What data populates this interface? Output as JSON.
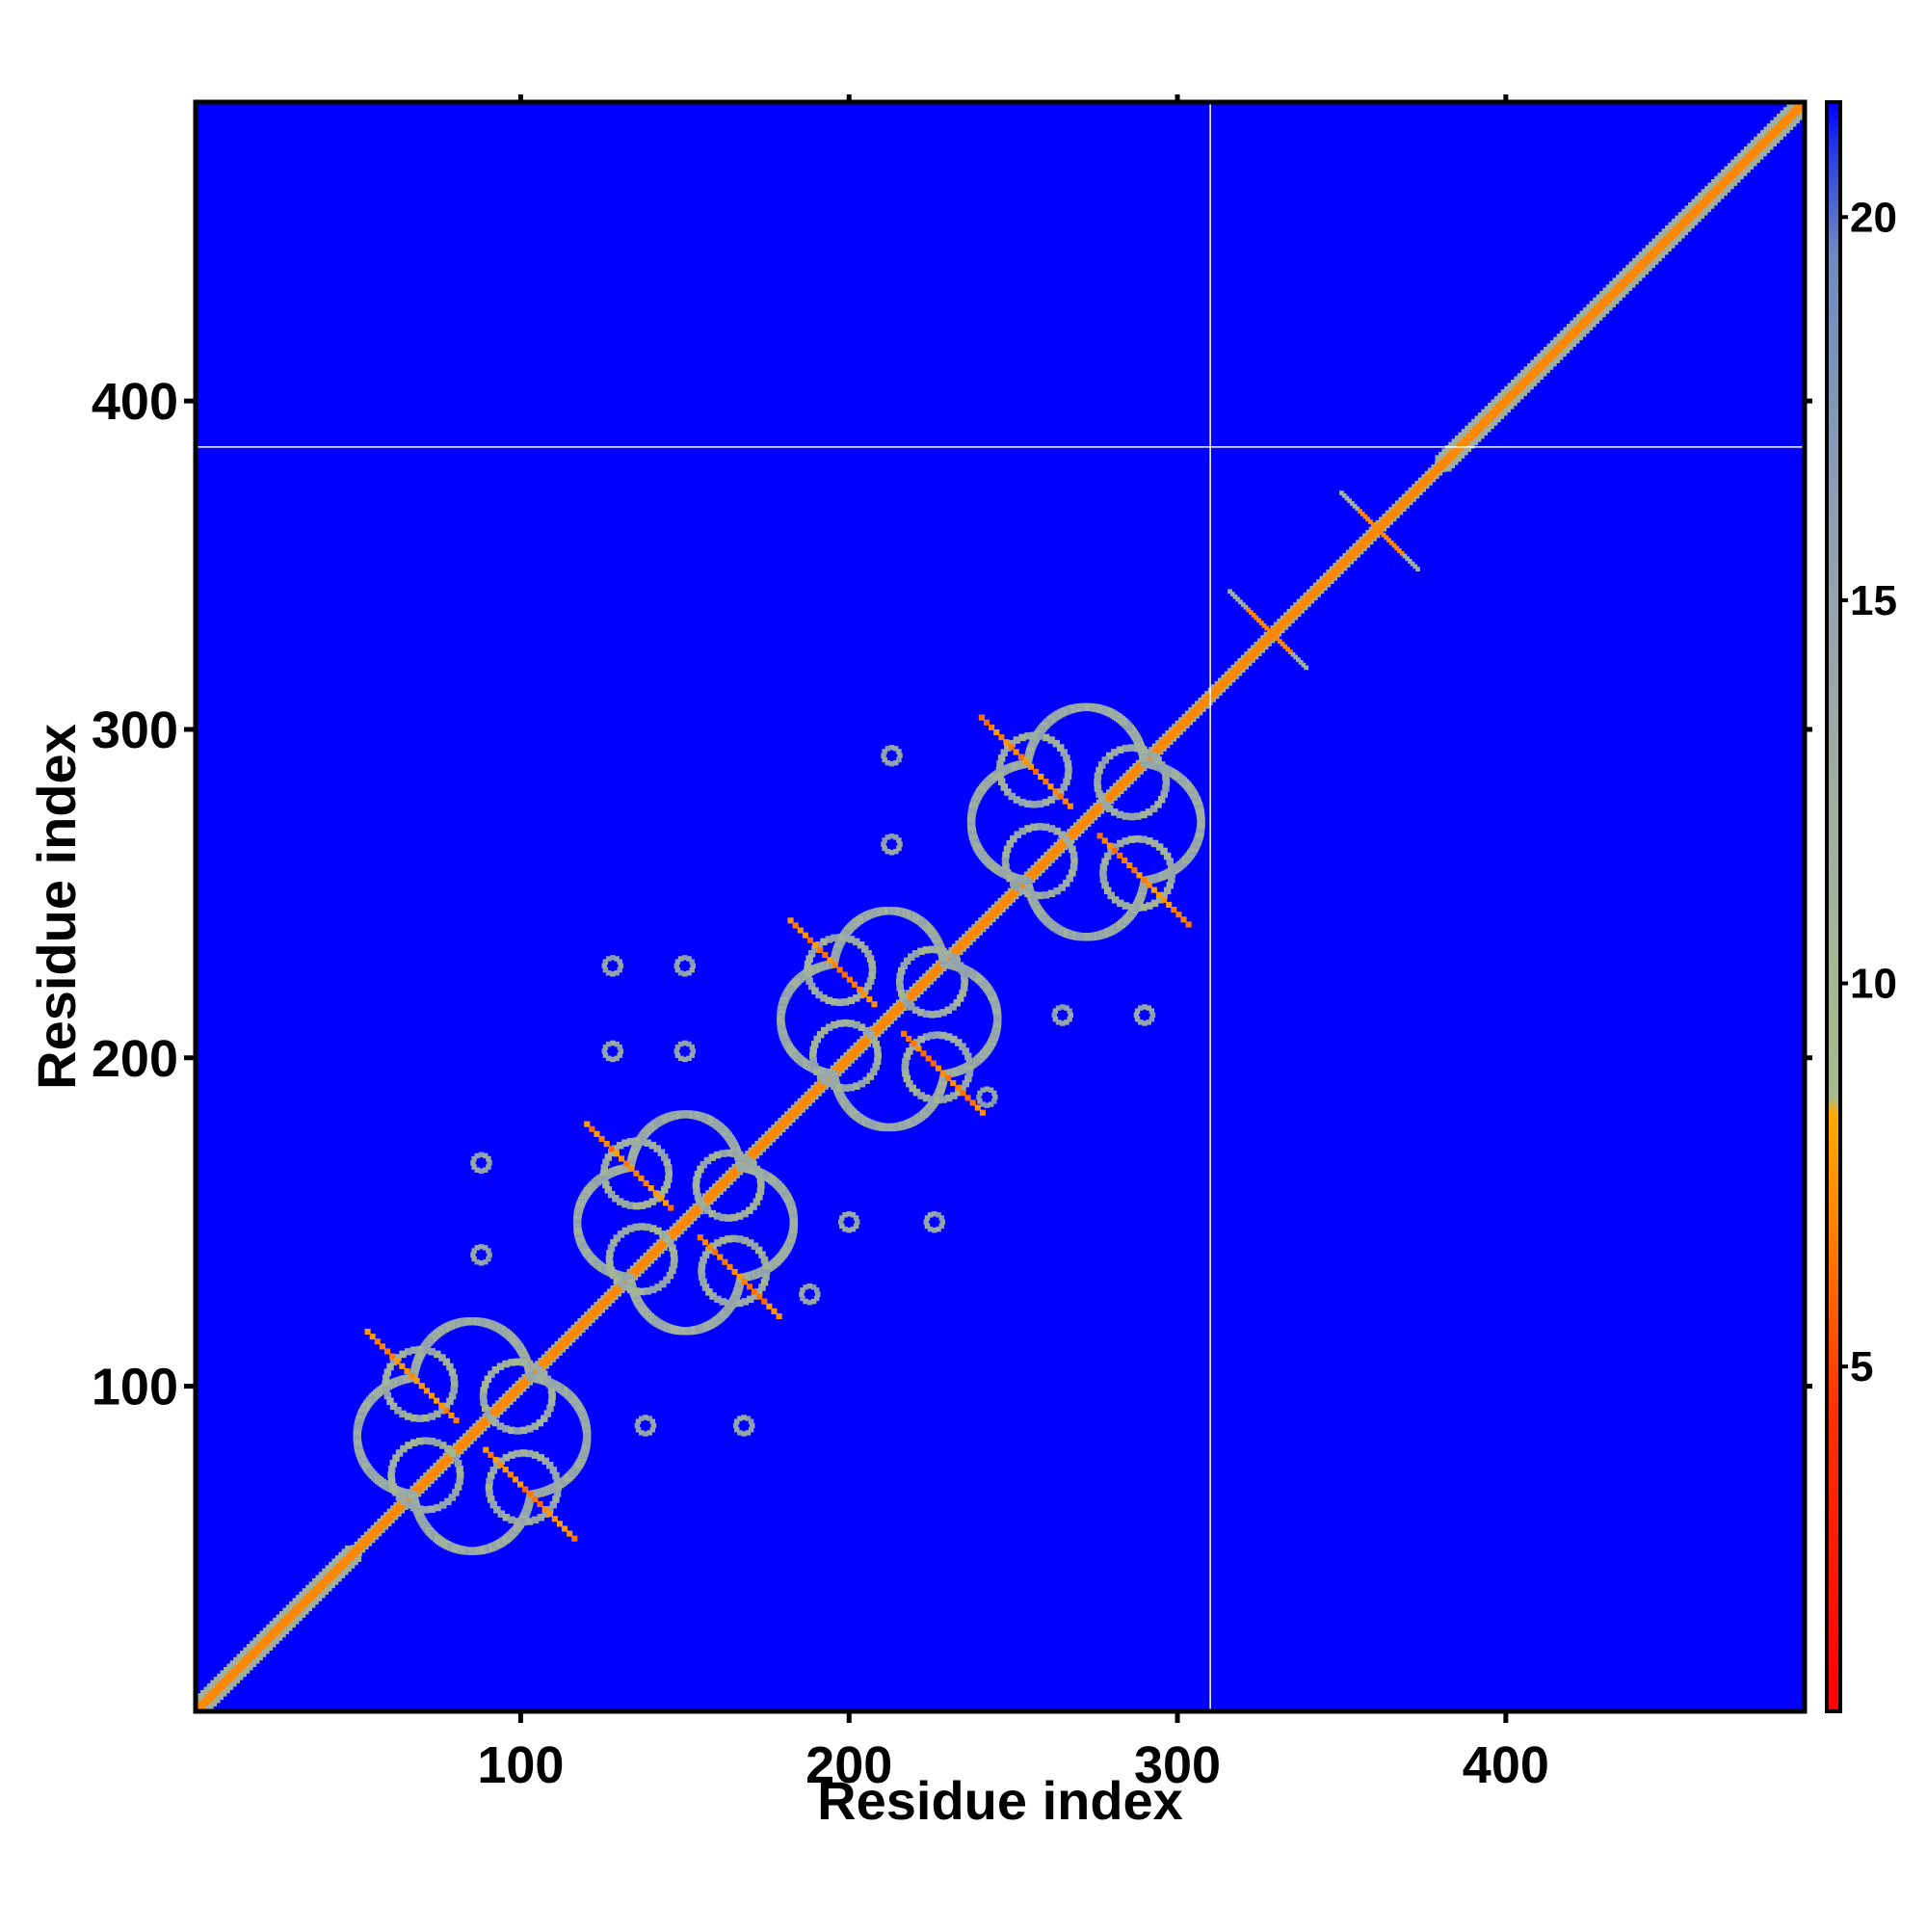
{
  "chart_data": {
    "type": "heatmap",
    "title": "",
    "xlabel": "Residue index",
    "ylabel": "Residue index",
    "xlim": [
      1,
      491
    ],
    "ylim": [
      1,
      491
    ],
    "x_ticks": [
      100,
      200,
      300,
      400
    ],
    "y_ticks": [
      100,
      200,
      300,
      400
    ],
    "colorbar": {
      "range": [
        0.5,
        21.5
      ],
      "ticks": [
        5,
        10,
        15,
        20
      ],
      "stops": [
        {
          "value": 0.5,
          "color": "#ff0000"
        },
        {
          "value": 4.5,
          "color": "#ff3300"
        },
        {
          "value": 7.0,
          "color": "#ff8800"
        },
        {
          "value": 8.3,
          "color": "#ffaa00"
        },
        {
          "value": 8.5,
          "color": "#a8bb8a"
        },
        {
          "value": 12.0,
          "color": "#a0b0a0"
        },
        {
          "value": 16.0,
          "color": "#8fa0b0"
        },
        {
          "value": 19.5,
          "color": "#6f8cc0"
        },
        {
          "value": 20.8,
          "color": "#2a40e0"
        },
        {
          "value": 21.5,
          "color": "#0000ff"
        }
      ]
    },
    "background_color": "#0000ff",
    "marker_lines": {
      "x": 310,
      "y": 386,
      "color": "#ffffff"
    },
    "diagonal": {
      "from": 1,
      "to": 491
    },
    "repeat_domains": [
      {
        "center": 85,
        "half_width": 35
      },
      {
        "center": 150,
        "half_width": 33
      },
      {
        "center": 212,
        "half_width": 33
      },
      {
        "center": 272,
        "half_width": 35
      }
    ],
    "off_diagonal_contacts": [
      {
        "x": 88,
        "y": 168
      },
      {
        "x": 88,
        "y": 140
      },
      {
        "x": 150,
        "y": 228
      },
      {
        "x": 150,
        "y": 202
      },
      {
        "x": 200,
        "y": 150
      },
      {
        "x": 226,
        "y": 150
      },
      {
        "x": 213,
        "y": 292
      },
      {
        "x": 213,
        "y": 265
      },
      {
        "x": 265,
        "y": 213
      },
      {
        "x": 290,
        "y": 213
      },
      {
        "x": 138,
        "y": 88
      },
      {
        "x": 168,
        "y": 88
      },
      {
        "x": 128,
        "y": 228
      },
      {
        "x": 128,
        "y": 202
      },
      {
        "x": 188,
        "y": 128
      },
      {
        "x": 242,
        "y": 188
      }
    ],
    "cross_features": [
      {
        "x": 328,
        "y": 330
      },
      {
        "x": 362,
        "y": 360
      }
    ]
  }
}
